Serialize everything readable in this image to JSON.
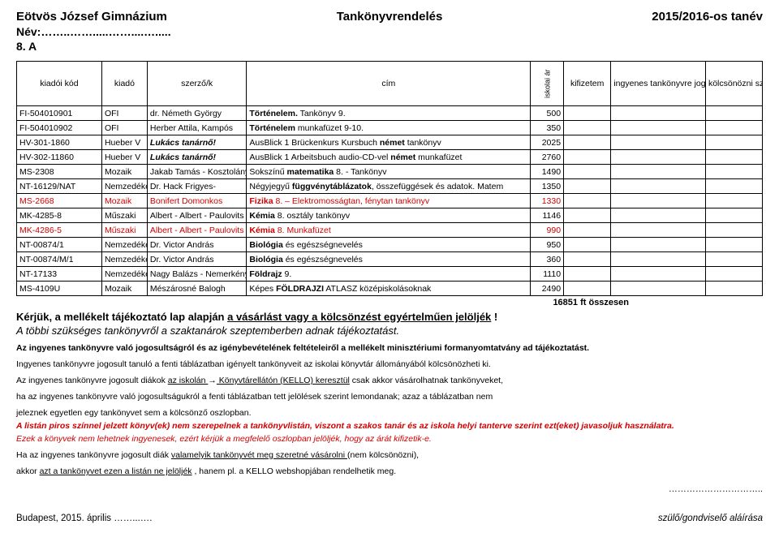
{
  "header": {
    "school": "Eötvös József Gimnázium",
    "title": "Tankönyvrendelés",
    "year": "2015/2016-os tanév",
    "name_label": "Név:……..…….....……....….....",
    "class_label": "8. A"
  },
  "columns": {
    "code": "kiadói kód",
    "publisher": "kiadó",
    "author": "szerző/k",
    "title": "cím",
    "price": "iskolai ár",
    "pay": "kifizetem",
    "free": "ingyenes tankönyvre jogosultként kérem",
    "loan": "kölcsönözni szeretném"
  },
  "rows": [
    {
      "code": "FI-504010901",
      "pub": "OFI",
      "auth": "dr. Németh György",
      "title_pre": "",
      "title_bold": "Történelem.",
      "title_post": " Tankönyv 9.",
      "price": "500",
      "red": false
    },
    {
      "code": "FI-504010902",
      "pub": "OFI",
      "auth": "Herber Attila, Kampós",
      "title_pre": "",
      "title_bold": "Történelem",
      "title_post": " munkafüzet 9-10.",
      "price": "350",
      "red": false
    },
    {
      "code": "HV-301-1860",
      "pub": "Hueber V",
      "auth": "",
      "auth_ital": "Lukács tanárnő!",
      "title_pre": "AusBlick 1 Brückenkurs Kursbuch ",
      "title_bold": "német",
      "title_post": " tankönyv",
      "price": "2025",
      "red": false
    },
    {
      "code": "HV-302-11860",
      "pub": "Hueber V",
      "auth": "",
      "auth_ital": "Lukács tanárnő!",
      "title_pre": "AusBlick 1 Arbeitsbuch audio-CD-vel ",
      "title_bold": "német",
      "title_post": " munkafüzet",
      "price": "2760",
      "red": false
    },
    {
      "code": "MS-2308",
      "pub": "Mozaik",
      "auth": "Jakab Tamás - Kosztolányi",
      "title_pre": "Sokszínű ",
      "title_bold": "matematika",
      "title_post": " 8. - Tankönyv",
      "price": "1490",
      "red": false
    },
    {
      "code": "NT-16129/NAT",
      "pub": "Nemzedékek",
      "auth": "Dr. Hack Frigyes-",
      "title_pre": "Négyjegyű ",
      "title_bold": "függvénytáblázatok",
      "title_post": ", összefüggések és adatok. Matem",
      "price": "1350",
      "red": false
    },
    {
      "code": "MS-2668",
      "pub": "Mozaik",
      "auth": "Bonifert Domonkos",
      "title_pre": "",
      "title_bold": "Fizika",
      "title_post": " 8. – Elektromosságtan, fénytan tankönyv",
      "price": "1330",
      "red": true
    },
    {
      "code": "MK-4285-8",
      "pub": "Műszaki",
      "auth": "Albert - Albert - Paulovits",
      "title_pre": "",
      "title_bold": "Kémia",
      "title_post": " 8. osztály tankönyv",
      "price": "1146",
      "red": false
    },
    {
      "code": "MK-4286-5",
      "pub": "Műszaki",
      "auth": "Albert - Albert - Paulovits",
      "title_pre": "",
      "title_bold": "Kémia",
      "title_post": " 8. Munkafüzet",
      "price": "990",
      "red": true
    },
    {
      "code": "NT-00874/1",
      "pub": "Nemzedékek",
      "auth": "Dr. Victor András",
      "title_pre": "",
      "title_bold": "Biológia",
      "title_post": " és egészségnevelés",
      "price": "950",
      "red": false
    },
    {
      "code": "NT-00874/M/1",
      "pub": "Nemzedékek",
      "auth": "Dr. Victor András",
      "title_pre": "",
      "title_bold": "Biológia",
      "title_post": " és egészségnevelés",
      "price": "360",
      "red": false
    },
    {
      "code": "NT-17133",
      "pub": "Nemzedékek",
      "auth": "Nagy Balázs - Nemerkényi",
      "title_pre": "",
      "title_bold": "Földrajz",
      "title_post": " 9.",
      "price": "1110",
      "red": false
    },
    {
      "code": "MS-4109U",
      "pub": "Mozaik",
      "auth": "Mészárosné Balogh",
      "title_pre": "Képes ",
      "title_bold": "FÖLDRAJZI",
      "title_post": " ATLASZ középiskolásoknak",
      "price": "2490",
      "red": false
    }
  ],
  "total": {
    "value": "16851",
    "label": " ft összesen"
  },
  "body_text": {
    "bold1a": "Kérjük, a mellékelt tájékoztató lap alapján ",
    "bold1u": "a vásárlást vagy a kölcsönzést egyértelműen jelöljék",
    "bold1b": " !",
    "italic1": " A többi szükséges tankönyvről  a szaktanárok szeptemberben adnak tájékoztatást.",
    "n1": "Az ingyenes tankönyvre való jogosultságról és az igénybevételének feltételeiről a mellékelt minisztériumi formanyomtatvány ad tájékoztatást.",
    "n2": "Ingyenes tankönyvre jogosult tanuló a fenti táblázatban igényelt tankönyveit az iskolai könyvtár állományából kölcsönözheti ki.",
    "n3a": "Az ingyenes tankönyvre jogosult diákok ",
    "n3u": " az iskolán ",
    "n3arrow": "→",
    "n3b": " Könyvtárellátón (KELLO) keresztül",
    "n3c": "  csak akkor vásárolhatnak tankönyveket,",
    "n4": " ha az ingyenes tankönyvre való jogosultságukról a fenti táblázatban tett jelölések szerint lemondanak; azaz a táblázatban nem",
    "n5": "jeleznek egyetlen egy tankönyvet sem a kölcsönző oszlopban.",
    "r1": "A listán piros színnel jelzett könyv(ek) nem szerepelnek a tankönyvlistán, viszont a szakos tanár és az iskola helyi tanterve szerint ezt(eket) javasoljuk használatra.",
    "r2": " Ezek a könyvek nem lehetnek ingyenesek, ezért kérjük a megfelelő oszlopban jelöljék, hogy az árát kifizetik-e.",
    "n6a": " Ha az ingyenes tankönyvre jogosult diák ",
    "n6u": " valamelyik tankönyvét meg szeretné vásárolni ",
    "n6b": " (nem kölcsönözni),",
    "n7a": " akkor ",
    "n7u": "azt a tankönyvet ezen a listán ne jelöljék",
    "n7b": " , hanem pl. a KELLO webshopjában rendelhetik meg."
  },
  "footer": {
    "left": "Budapest, 2015. április ……...….",
    "sig_dots": "…………………………..",
    "right": "szülő/gondviselő aláírása"
  }
}
